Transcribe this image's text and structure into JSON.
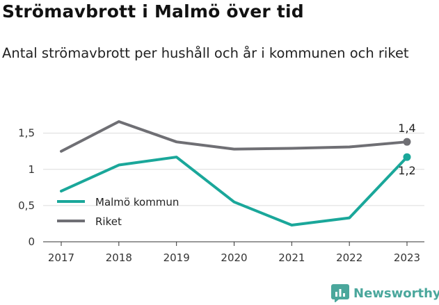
{
  "header": {
    "title": "Strömavbrott i Malmö över tid",
    "subtitle": "Antal strömavbrott per hushåll och år i kommunen och riket"
  },
  "brand": {
    "name": "Newsworthy",
    "icon": "newsworthy-chart-icon",
    "color": "#4aa79c"
  },
  "chart_data": {
    "type": "line",
    "title": "Strömavbrott i Malmö över tid",
    "subtitle": "Antal strömavbrott per hushåll och år i kommunen och riket",
    "xlabel": "",
    "ylabel": "",
    "categories": [
      "2017",
      "2018",
      "2019",
      "2020",
      "2021",
      "2022",
      "2023"
    ],
    "ylim": [
      0,
      1.7
    ],
    "yticks": [
      0,
      0.5,
      1,
      1.5
    ],
    "ytick_labels": [
      "0",
      "0,5",
      "1",
      "1,5"
    ],
    "grid": true,
    "legend_position": "bottom-left",
    "series": [
      {
        "name": "Malmö kommun",
        "color": "#1aa79a",
        "values": [
          0.7,
          1.06,
          1.17,
          0.55,
          0.23,
          0.33,
          1.17
        ],
        "end_label": "1,2"
      },
      {
        "name": "Riket",
        "color": "#6f6f74",
        "values": [
          1.25,
          1.66,
          1.38,
          1.28,
          1.29,
          1.31,
          1.38
        ],
        "end_label": "1,4"
      }
    ]
  }
}
